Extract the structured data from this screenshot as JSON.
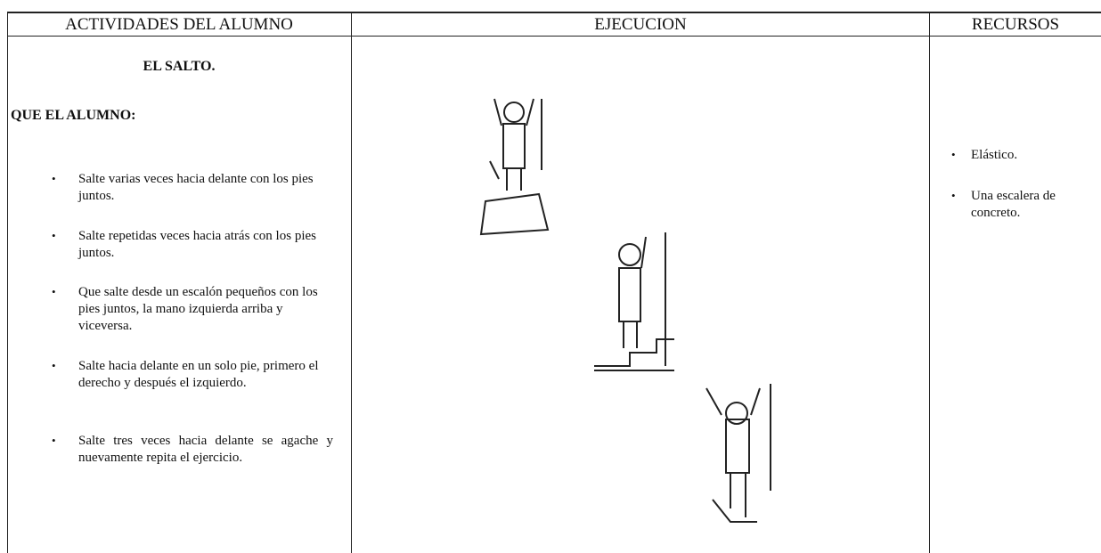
{
  "header": {
    "columns": [
      "ACTIVIDADES DEL ALUMNO",
      "EJECUCION",
      "RECURSOS"
    ]
  },
  "activities": {
    "title": "EL SALTO.",
    "intro": "QUE EL ALUMNO:",
    "items": [
      "Salte varias veces hacia delante con los pies juntos.",
      "Salte repetidas veces hacia atrás con los pies juntos.",
      "Que salte desde un escalón pequeños con los pies juntos, la mano izquierda arriba y viceversa.",
      "Salte hacia delante en un solo pie, primero el derecho y después el izquierdo.",
      "Salte tres veces hacia delante se agache y nuevamente repita el ejercicio."
    ]
  },
  "resources": {
    "items": [
      "Elástico.",
      "Una escalera de concreto."
    ]
  }
}
